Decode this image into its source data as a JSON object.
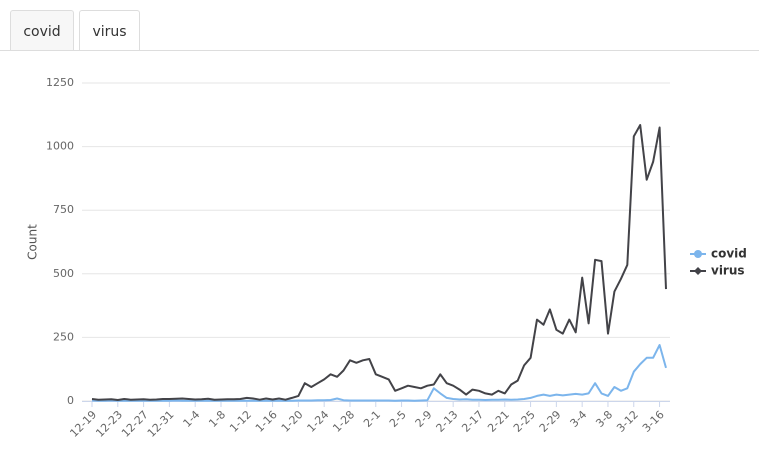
{
  "tabs": [
    "covid",
    "virus"
  ],
  "chart_data": {
    "type": "line",
    "y_label": "Count",
    "categories": [
      "12-19",
      null,
      null,
      null,
      "12-23",
      null,
      null,
      null,
      "12-27",
      null,
      null,
      null,
      "12-31",
      null,
      null,
      null,
      "1-4",
      null,
      null,
      null,
      "1-8",
      null,
      null,
      null,
      "1-12",
      null,
      null,
      null,
      "1-16",
      null,
      null,
      null,
      "1-20",
      null,
      null,
      null,
      "1-24",
      null,
      null,
      null,
      "1-28",
      null,
      null,
      null,
      "2-1",
      null,
      null,
      null,
      "2-5",
      null,
      null,
      null,
      "2-9",
      null,
      null,
      null,
      "2-13",
      null,
      null,
      null,
      "2-17",
      null,
      null,
      null,
      "2-21",
      null,
      null,
      null,
      "2-25",
      null,
      null,
      null,
      "2-29",
      null,
      null,
      null,
      "3-4",
      null,
      null,
      null,
      "3-8",
      null,
      null,
      null,
      "3-12",
      null,
      null,
      null,
      "3-16",
      null
    ],
    "series": [
      {
        "name": "covid",
        "color": "#7cb5ec",
        "marker": "circle",
        "values": [
          2,
          1,
          1,
          2,
          1,
          1,
          1,
          1,
          1,
          1,
          1,
          1,
          1,
          2,
          1,
          1,
          1,
          1,
          1,
          1,
          1,
          1,
          1,
          1,
          1,
          1,
          1,
          1,
          1,
          1,
          1,
          1,
          2,
          2,
          2,
          3,
          3,
          4,
          10,
          3,
          2,
          2,
          2,
          2,
          2,
          2,
          2,
          1,
          2,
          2,
          1,
          2,
          3,
          50,
          30,
          12,
          8,
          6,
          7,
          5,
          5,
          4,
          5,
          5,
          6,
          5,
          6,
          8,
          12,
          20,
          25,
          20,
          25,
          22,
          25,
          28,
          25,
          30,
          70,
          30,
          20,
          55,
          40,
          50,
          115,
          145,
          170,
          170,
          220,
          130
        ]
      },
      {
        "name": "virus",
        "color": "#434348",
        "marker": "diamond",
        "values": [
          8,
          5,
          6,
          7,
          4,
          8,
          5,
          6,
          7,
          5,
          6,
          8,
          8,
          9,
          10,
          8,
          6,
          7,
          9,
          5,
          6,
          7,
          7,
          8,
          12,
          10,
          5,
          10,
          6,
          10,
          5,
          12,
          20,
          70,
          55,
          70,
          85,
          105,
          95,
          120,
          160,
          150,
          160,
          165,
          105,
          95,
          85,
          40,
          50,
          60,
          55,
          50,
          60,
          65,
          105,
          70,
          60,
          45,
          25,
          45,
          40,
          30,
          25,
          40,
          30,
          65,
          80,
          140,
          170,
          320,
          300,
          360,
          280,
          265,
          320,
          270,
          485,
          305,
          555,
          550,
          265,
          430,
          480,
          535,
          1040,
          1085,
          870,
          940,
          1075,
          440
        ]
      }
    ],
    "ylim": [
      0,
      1250
    ],
    "yticks": [
      0,
      250,
      500,
      750,
      1000,
      1250
    ],
    "grid": true,
    "legend": "right"
  }
}
